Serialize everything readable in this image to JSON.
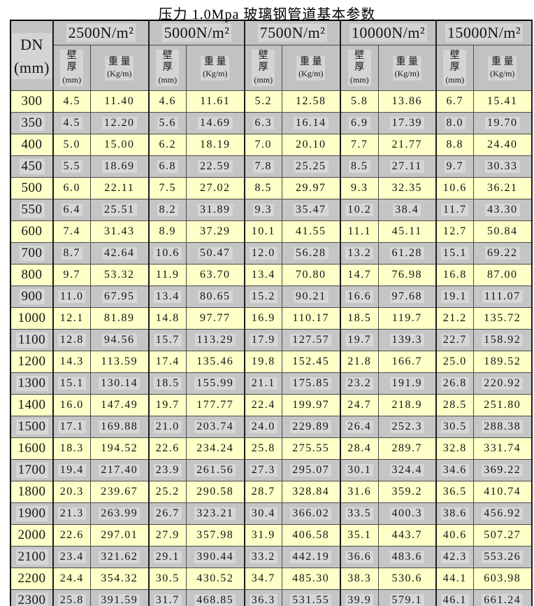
{
  "title": "压力 1.0Mpa 玻璃钢管道基本参数",
  "colors": {
    "row_yellow": "#ffffc8",
    "row_gray": "#c5c5c5",
    "header_gray": "#c2c2c2",
    "grid_line": "#4a4a4a",
    "outer_border": "#000000",
    "text": "#141414"
  },
  "table": {
    "dn_header": {
      "line1": "DN",
      "line2": "(mm)"
    },
    "groups": [
      {
        "label": "2500N/m²"
      },
      {
        "label": "5000N/m²"
      },
      {
        "label": "7500N/m²"
      },
      {
        "label": "10000N/m²"
      },
      {
        "label": "15000N/m²"
      }
    ],
    "subheaders": {
      "thickness": {
        "l1": "壁",
        "l2": "厚",
        "l3": "(mm)"
      },
      "weight": {
        "l1": "重 量",
        "l2": "(Kg/m)"
      }
    },
    "rows": [
      {
        "dn": "300",
        "values": [
          "4.5",
          "11.40",
          "4.6",
          "11.61",
          "5.2",
          "12.58",
          "5.8",
          "13.86",
          "6.7",
          "15.41"
        ]
      },
      {
        "dn": "350",
        "values": [
          "4.5",
          "12.20",
          "5.6",
          "14.69",
          "6.3",
          "16.14",
          "6.9",
          "17.39",
          "8.0",
          "19.70"
        ]
      },
      {
        "dn": "400",
        "values": [
          "5.0",
          "15.00",
          "6.2",
          "18.19",
          "7.0",
          "20.10",
          "7.7",
          "21.77",
          "8.8",
          "24.40"
        ]
      },
      {
        "dn": "450",
        "values": [
          "5.5",
          "18.69",
          "6.8",
          "22.59",
          "7.8",
          "25.25",
          "8.5",
          "27.11",
          "9.7",
          "30.33"
        ]
      },
      {
        "dn": "500",
        "values": [
          "6.0",
          "22.11",
          "7.5",
          "27.02",
          "8.5",
          "29.97",
          "9.3",
          "32.35",
          "10.6",
          "36.21"
        ]
      },
      {
        "dn": "550",
        "values": [
          "6.4",
          "25.51",
          "8.2",
          "31.89",
          "9.3",
          "35.47",
          "10.2",
          "38.4",
          "11.7",
          "43.30"
        ]
      },
      {
        "dn": "600",
        "values": [
          "7.4",
          "31.43",
          "8.9",
          "37.29",
          "10.1",
          "41.55",
          "11.1",
          "45.11",
          "12.7",
          "50.84"
        ]
      },
      {
        "dn": "700",
        "values": [
          "8.7",
          "42.64",
          "10.6",
          "50.47",
          "12.0",
          "56.28",
          "13.2",
          "61.28",
          "15.1",
          "69.22"
        ]
      },
      {
        "dn": "800",
        "values": [
          "9.7",
          "53.32",
          "11.9",
          "63.70",
          "13.4",
          "70.80",
          "14.7",
          "76.98",
          "16.8",
          "87.00"
        ]
      },
      {
        "dn": "900",
        "values": [
          "11.0",
          "67.95",
          "13.4",
          "80.65",
          "15.2",
          "90.21",
          "16.6",
          "97.68",
          "19.1",
          "111.07"
        ]
      },
      {
        "dn": "1000",
        "values": [
          "12.1",
          "81.89",
          "14.8",
          "97.77",
          "16.9",
          "110.17",
          "18.5",
          "119.7",
          "21.2",
          "135.72"
        ]
      },
      {
        "dn": "1100",
        "values": [
          "12.8",
          "94.56",
          "15.7",
          "113.29",
          "17.9",
          "127.57",
          "19.7",
          "139.3",
          "22.7",
          "158.92"
        ]
      },
      {
        "dn": "1200",
        "values": [
          "14.3",
          "113.59",
          "17.4",
          "135.46",
          "19.8",
          "152.45",
          "21.8",
          "166.7",
          "25.0",
          "189.52"
        ]
      },
      {
        "dn": "1300",
        "values": [
          "15.1",
          "130.14",
          "18.5",
          "155.99",
          "21.1",
          "175.85",
          "23.2",
          "191.9",
          "26.8",
          "220.92"
        ]
      },
      {
        "dn": "1400",
        "values": [
          "16.0",
          "147.49",
          "19.7",
          "177.77",
          "22.4",
          "199.97",
          "24.7",
          "218.9",
          "28.5",
          "251.80"
        ]
      },
      {
        "dn": "1500",
        "values": [
          "17.1",
          "169.88",
          "21.0",
          "203.74",
          "24.0",
          "229.89",
          "26.4",
          "252.3",
          "30.5",
          "288.38"
        ]
      },
      {
        "dn": "1600",
        "values": [
          "18.3",
          "194.52",
          "22.6",
          "234.24",
          "25.8",
          "275.55",
          "28.4",
          "289.7",
          "32.8",
          "331.74"
        ]
      },
      {
        "dn": "1700",
        "values": [
          "19.4",
          "217.40",
          "23.9",
          "261.56",
          "27.3",
          "295.07",
          "30.1",
          "324.4",
          "34.6",
          "369.22"
        ]
      },
      {
        "dn": "1800",
        "values": [
          "20.3",
          "239.67",
          "25.2",
          "290.58",
          "28.7",
          "328.84",
          "31.6",
          "359.2",
          "36.5",
          "410.74"
        ]
      },
      {
        "dn": "1900",
        "values": [
          "21.3",
          "263.99",
          "26.7",
          "323.21",
          "30.4",
          "366.02",
          "33.5",
          "400.3",
          "38.6",
          "456.92"
        ]
      },
      {
        "dn": "2000",
        "values": [
          "22.6",
          "297.01",
          "27.9",
          "357.98",
          "31.9",
          "406.58",
          "35.1",
          "443.7",
          "40.6",
          "507.27"
        ]
      },
      {
        "dn": "2100",
        "values": [
          "23.4",
          "321.62",
          "29.1",
          "390.44",
          "33.2",
          "442.19",
          "36.6",
          "483.6",
          "42.3",
          "553.26"
        ]
      },
      {
        "dn": "2200",
        "values": [
          "24.4",
          "354.32",
          "30.5",
          "430.52",
          "34.7",
          "485.30",
          "38.3",
          "530.6",
          "44.1",
          "603.98"
        ]
      },
      {
        "dn": "2300",
        "values": [
          "25.8",
          "391.59",
          "31.7",
          "468.85",
          "36.3",
          "531.55",
          "39.9",
          "579.1",
          "46.1",
          "661.24"
        ]
      }
    ]
  }
}
